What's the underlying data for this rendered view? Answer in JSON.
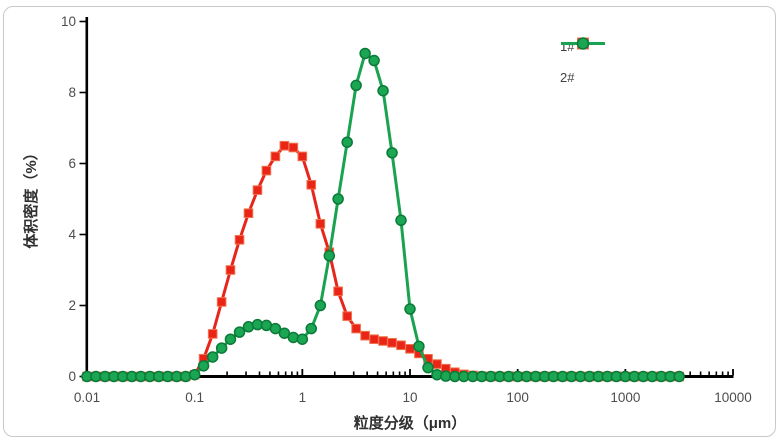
{
  "chart": {
    "x_axis": {
      "title": "粒度分级（μm）",
      "scale": "log",
      "tick_labels": [
        "0.01",
        "0.1",
        "1",
        "10",
        "100",
        "1000",
        "10000"
      ],
      "tick_values": [
        0.01,
        0.1,
        1,
        10,
        100,
        1000,
        10000
      ]
    },
    "y_axis": {
      "title": "体积密度（%）",
      "tick_labels": [
        "0",
        "2",
        "4",
        "6",
        "8",
        "10"
      ],
      "tick_values": [
        0,
        2,
        4,
        6,
        8,
        10
      ]
    },
    "axis_color": "#000000",
    "tick_label_color": "#4d4d4d",
    "border_color": "#c9c9c9"
  },
  "chart_data": {
    "type": "line",
    "title": "",
    "xlabel": "粒度分级（μm）",
    "ylabel": "体积密度（%）",
    "x_scale": "log",
    "xlim": [
      0.01,
      10000
    ],
    "ylim": [
      0,
      10
    ],
    "grid": false,
    "legend_position": "top-right",
    "x": [
      0.01,
      0.0121,
      0.0147,
      0.0178,
      0.0215,
      0.0261,
      0.0316,
      0.0383,
      0.0464,
      0.0562,
      0.0681,
      0.0825,
      0.1,
      0.121,
      0.147,
      0.178,
      0.215,
      0.261,
      0.316,
      0.383,
      0.464,
      0.562,
      0.681,
      0.825,
      1.0,
      1.21,
      1.47,
      1.78,
      2.15,
      2.61,
      3.16,
      3.83,
      4.64,
      5.62,
      6.81,
      8.25,
      10.0,
      12.1,
      14.7,
      17.8,
      21.5,
      26.1,
      31.6,
      38.3,
      46.4,
      56.2,
      68.1,
      82.5,
      100,
      121,
      147,
      178,
      215,
      261,
      316,
      383,
      464,
      562,
      681,
      825,
      1000,
      1212,
      1468,
      1778,
      2154,
      2610,
      3162
    ],
    "series": [
      {
        "name": "1#",
        "marker": "square",
        "color": "#e8251a",
        "marker_fill": "#ea2417",
        "marker_stroke": "#f0734d",
        "values": [
          0,
          0,
          0,
          0,
          0,
          0,
          0,
          0,
          0,
          0,
          0,
          0,
          0.05,
          0.5,
          1.2,
          2.1,
          3.0,
          3.85,
          4.6,
          5.25,
          5.8,
          6.2,
          6.5,
          6.45,
          6.2,
          5.4,
          4.3,
          3.5,
          2.4,
          1.7,
          1.35,
          1.15,
          1.05,
          1.0,
          0.95,
          0.88,
          0.78,
          0.65,
          0.5,
          0.35,
          0.22,
          0.12,
          0.06,
          0.03,
          0.01,
          0,
          0,
          0,
          0,
          0,
          0,
          0,
          0,
          0,
          0,
          0,
          0,
          0,
          0,
          0,
          0,
          0,
          0,
          0,
          0,
          0,
          0
        ]
      },
      {
        "name": "2#",
        "marker": "circle",
        "color": "#19a24f",
        "marker_fill": "#1ba653",
        "marker_stroke": "#0b7a39",
        "values": [
          0,
          0,
          0,
          0,
          0,
          0,
          0,
          0,
          0,
          0,
          0,
          0,
          0.05,
          0.3,
          0.55,
          0.8,
          1.05,
          1.25,
          1.4,
          1.46,
          1.44,
          1.35,
          1.22,
          1.1,
          1.05,
          1.35,
          2.0,
          3.4,
          5.0,
          6.6,
          8.2,
          9.1,
          8.9,
          8.05,
          6.3,
          4.4,
          1.9,
          0.85,
          0.25,
          0.05,
          0.01,
          0,
          0,
          0,
          0,
          0,
          0,
          0,
          0,
          0,
          0,
          0,
          0,
          0,
          0,
          0,
          0,
          0,
          0,
          0,
          0,
          0,
          0,
          0,
          0,
          0,
          0
        ]
      }
    ]
  }
}
